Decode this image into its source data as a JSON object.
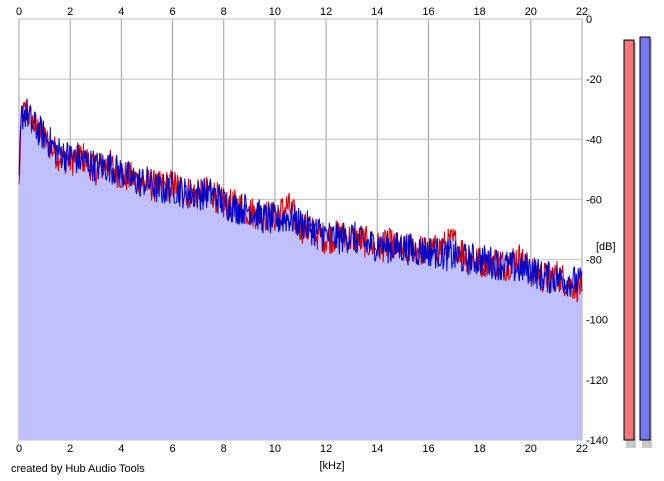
{
  "credit": "created by Hub Audio Tools",
  "chart_data": {
    "type": "line",
    "title": "",
    "xlabel": "[kHz]",
    "ylabel": "[dB]",
    "xlim": [
      0,
      22
    ],
    "ylim": [
      -140,
      0
    ],
    "x_ticks": [
      0,
      2,
      4,
      6,
      8,
      10,
      12,
      14,
      16,
      18,
      20,
      22
    ],
    "y_ticks": [
      0,
      -20,
      -40,
      -60,
      -80,
      -100,
      -120,
      -140
    ],
    "grid": true,
    "fill_color": "#c0c0ff",
    "series": [
      {
        "color": "#e00000",
        "x": [
          0,
          0.1,
          0.3,
          0.5,
          1,
          1.5,
          2,
          2.5,
          3,
          3.5,
          4,
          4.5,
          5,
          5.5,
          6,
          6.5,
          7,
          7.5,
          8,
          8.5,
          9,
          9.5,
          10,
          10.5,
          11,
          11.5,
          12,
          12.5,
          13,
          13.5,
          14,
          14.5,
          15,
          15.5,
          16,
          16.5,
          17,
          17.5,
          18,
          18.5,
          19,
          19.5,
          20,
          20.5,
          21,
          21.5,
          22
        ],
        "y": [
          -55,
          -33,
          -30,
          -34,
          -40,
          -45,
          -47,
          -46,
          -50,
          -48,
          -52,
          -53,
          -55,
          -56,
          -55,
          -57,
          -59,
          -57,
          -62,
          -62,
          -64,
          -65,
          -66,
          -62,
          -69,
          -71,
          -73,
          -72,
          -73,
          -74,
          -76,
          -75,
          -77,
          -76,
          -78,
          -76,
          -74,
          -79,
          -81,
          -80,
          -82,
          -79,
          -84,
          -86,
          -85,
          -88,
          -89
        ]
      },
      {
        "color": "#0000c8",
        "x": [
          0,
          0.1,
          0.3,
          0.5,
          1,
          1.5,
          2,
          2.5,
          3,
          3.5,
          4,
          4.5,
          5,
          5.5,
          6,
          6.5,
          7,
          7.5,
          8,
          8.5,
          9,
          9.5,
          10,
          10.5,
          11,
          11.5,
          12,
          12.5,
          13,
          13.5,
          14,
          14.5,
          15,
          15.5,
          16,
          16.5,
          17,
          17.5,
          18,
          18.5,
          19,
          19.5,
          20,
          20.5,
          21,
          21.5,
          22
        ],
        "y": [
          -52,
          -32,
          -31,
          -35,
          -39,
          -44,
          -46,
          -47,
          -49,
          -49,
          -51,
          -54,
          -54,
          -57,
          -56,
          -58,
          -58,
          -58,
          -61,
          -63,
          -63,
          -66,
          -67,
          -66,
          -68,
          -70,
          -72,
          -73,
          -72,
          -75,
          -75,
          -76,
          -76,
          -77,
          -77,
          -78,
          -79,
          -80,
          -80,
          -81,
          -82,
          -83,
          -83,
          -86,
          -86,
          -87,
          -88
        ]
      }
    ],
    "level_meters": [
      {
        "color": "#f07878",
        "value_db": -7
      },
      {
        "color": "#7878f0",
        "value_db": -6
      }
    ]
  }
}
